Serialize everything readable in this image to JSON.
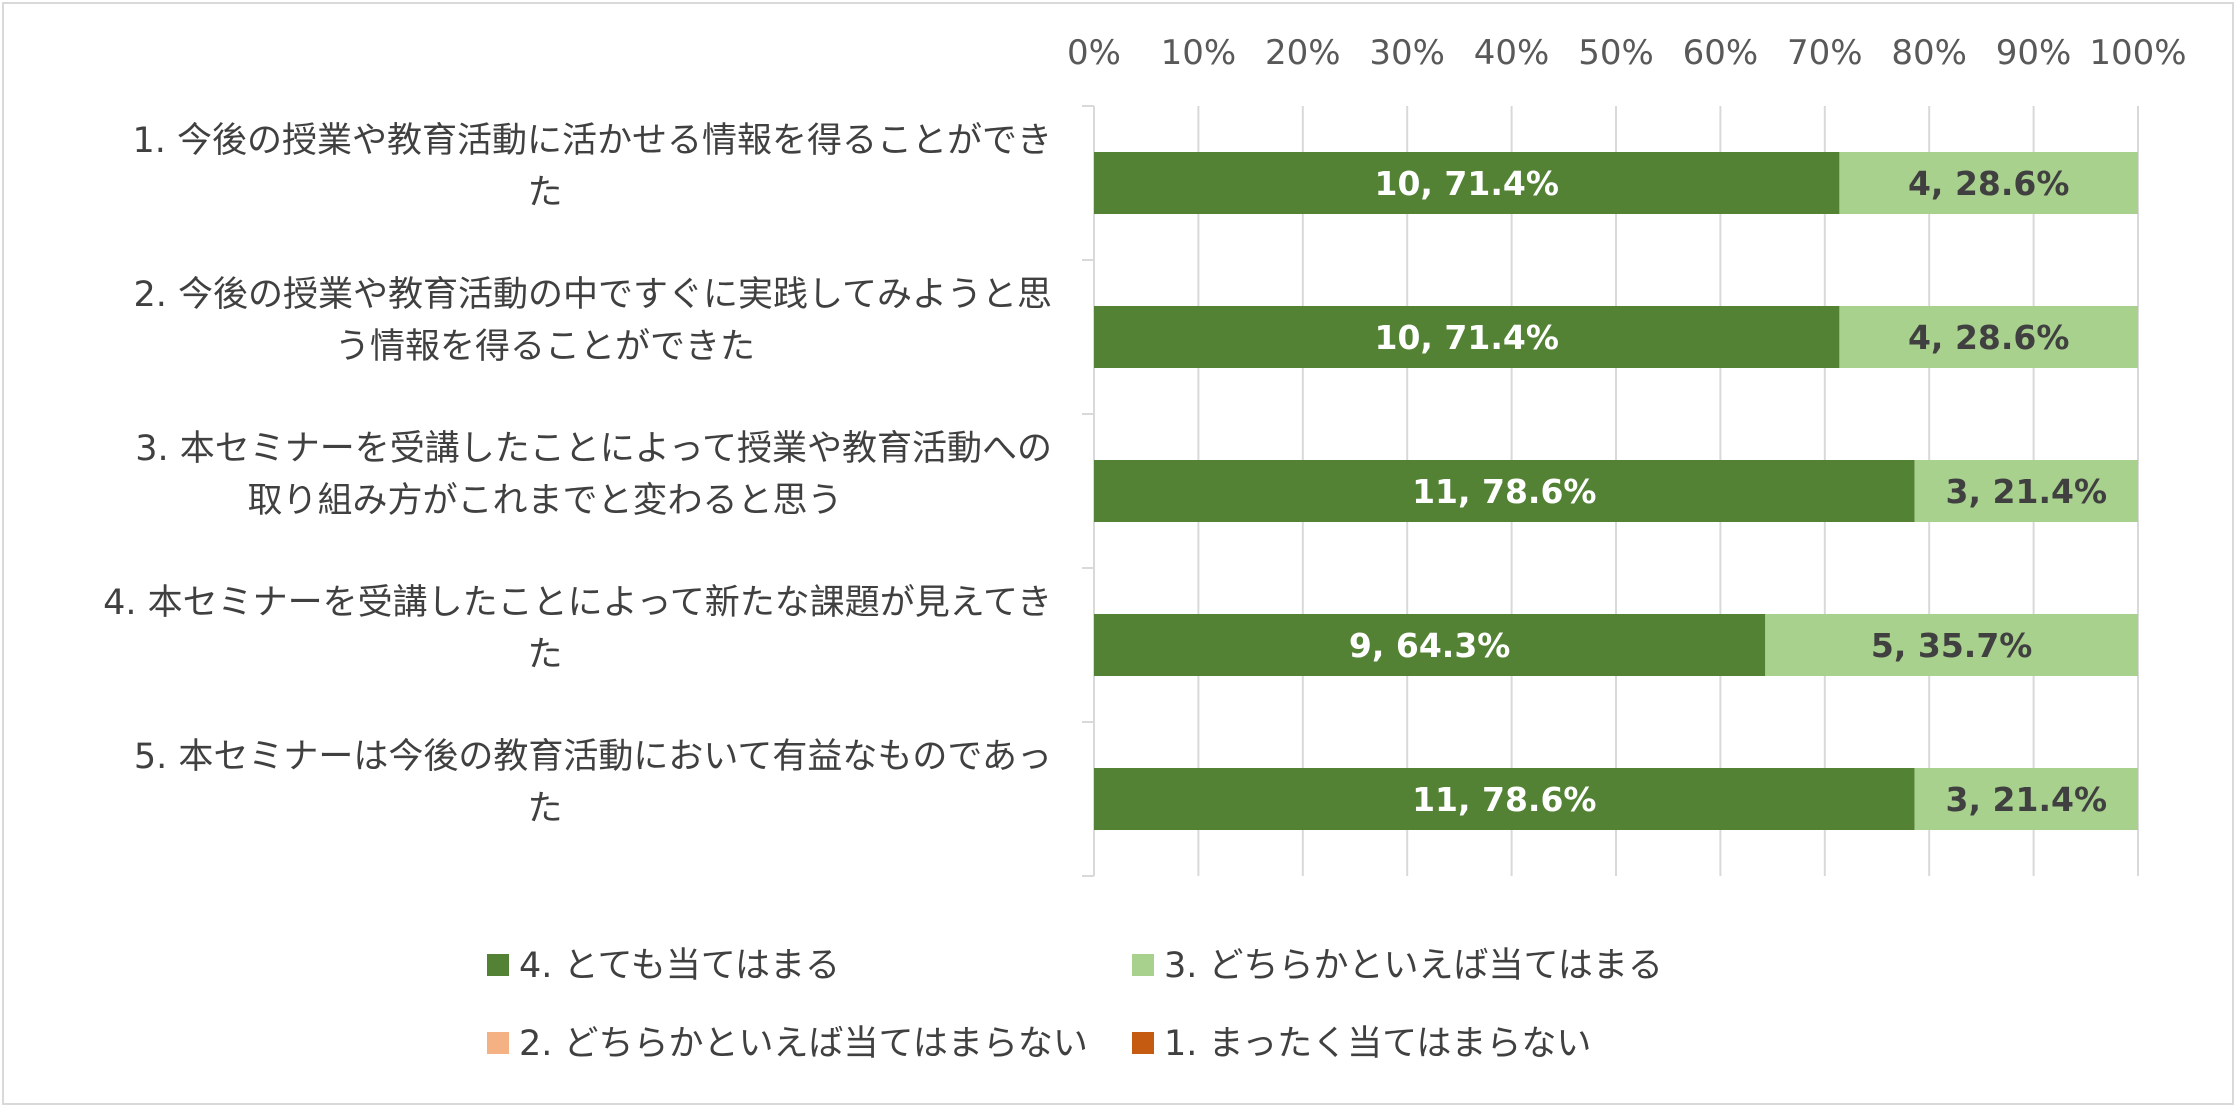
{
  "chart_data": {
    "type": "bar",
    "orientation": "horizontal",
    "stacked": "percent",
    "xlim": [
      0,
      100
    ],
    "x_ticks": [
      "0%",
      "10%",
      "20%",
      "30%",
      "40%",
      "50%",
      "60%",
      "70%",
      "80%",
      "90%",
      "100%"
    ],
    "grid": true,
    "legend_position": "bottom",
    "categories": [
      [
        "1. 今後の授業や教育活動に活かせる情報を得ることができ",
        "た"
      ],
      [
        "2. 今後の授業や教育活動の中ですぐに実践してみようと思",
        "う情報を得ることができた"
      ],
      [
        "3. 本セミナーを受講したことによって授業や教育活動への",
        "取り組み方がこれまでと変わると思う"
      ],
      [
        "4. 本セミナーを受講したことによって新たな課題が見えてき",
        "た"
      ],
      [
        "5. 本セミナーは今後の教育活動において有益なものであっ",
        "た"
      ]
    ],
    "series": [
      {
        "name": "4. とても当てはまる",
        "color": "#548235",
        "label_color": "#ffffff",
        "counts": [
          10,
          10,
          11,
          9,
          11
        ],
        "percents": [
          71.4,
          71.4,
          78.6,
          64.3,
          78.6
        ],
        "labels": [
          "10, 71.4%",
          "10, 71.4%",
          "11, 78.6%",
          "9, 64.3%",
          "11, 78.6%"
        ]
      },
      {
        "name": "3. どちらかといえば当てはまる",
        "color": "#a9d18e",
        "label_color": "#404040",
        "counts": [
          4,
          4,
          3,
          5,
          3
        ],
        "percents": [
          28.6,
          28.6,
          21.4,
          35.7,
          21.4
        ],
        "labels": [
          "4, 28.6%",
          "4, 28.6%",
          "3, 21.4%",
          "5, 35.7%",
          "3, 21.4%"
        ]
      },
      {
        "name": "2. どちらかといえば当てはまらない",
        "color": "#f4b183",
        "label_color": "#404040",
        "counts": [
          0,
          0,
          0,
          0,
          0
        ],
        "percents": [
          0,
          0,
          0,
          0,
          0
        ],
        "labels": [
          "",
          "",
          "",
          "",
          ""
        ]
      },
      {
        "name": "1. まったく当てはまらない",
        "color": "#c55a11",
        "label_color": "#ffffff",
        "counts": [
          0,
          0,
          0,
          0,
          0
        ],
        "percents": [
          0,
          0,
          0,
          0,
          0
        ],
        "labels": [
          "",
          "",
          "",
          "",
          ""
        ]
      }
    ]
  }
}
